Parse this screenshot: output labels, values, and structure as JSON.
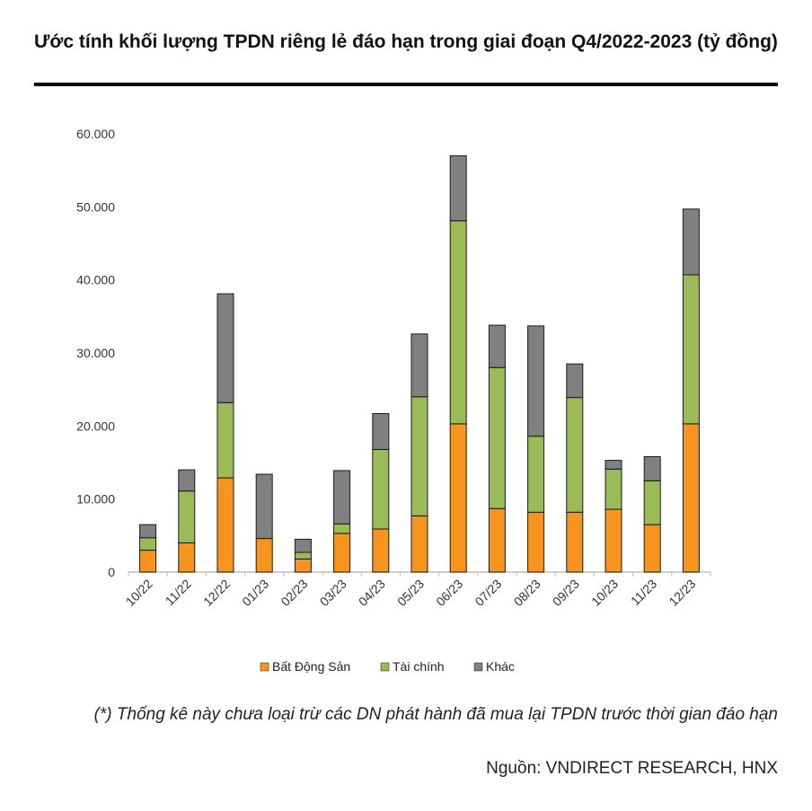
{
  "title": "Ước tính khối lượng TPDN riêng lẻ đáo hạn trong giai đoạn Q4/2022-2023 (tỷ đồng)",
  "note": "(*) Thống kê này chưa loại trừ các DN phát hành đã mua lại TPDN trước thời gian đáo hạn",
  "source": "Nguồn: VNDIRECT RESEARCH, HNX",
  "colors": {
    "bds": "#F7941D",
    "taichinh": "#9BBB59",
    "khac": "#808080",
    "axis": "#bfbfbf"
  },
  "chart_data": {
    "type": "bar",
    "stacked": true,
    "title": "Ước tính khối lượng TPDN riêng lẻ đáo hạn trong giai đoạn Q4/2022-2023 (tỷ đồng)",
    "xlabel": "",
    "ylabel": "",
    "ylim": [
      0,
      60000
    ],
    "yticks": [
      0,
      10000,
      20000,
      30000,
      40000,
      50000,
      60000
    ],
    "ytick_labels": [
      "0",
      "10.000",
      "20.000",
      "30.000",
      "40.000",
      "50.000",
      "60.000"
    ],
    "categories": [
      "10/22",
      "11/22",
      "12/22",
      "01/23",
      "02/23",
      "03/23",
      "04/23",
      "05/23",
      "06/23",
      "07/23",
      "08/23",
      "09/23",
      "10/23",
      "11/23",
      "12/23"
    ],
    "series": [
      {
        "name": "Bất Động Sản",
        "values": [
          3000,
          4000,
          12900,
          4600,
          1800,
          5300,
          5900,
          7700,
          20300,
          8700,
          8200,
          8200,
          8600,
          6500,
          20300
        ]
      },
      {
        "name": "Tài chính",
        "values": [
          1700,
          7100,
          10300,
          0,
          900,
          1300,
          10900,
          16300,
          27800,
          19300,
          10400,
          15700,
          5500,
          6000,
          20400
        ]
      },
      {
        "name": "Khác",
        "values": [
          1800,
          2900,
          14900,
          8800,
          1800,
          7300,
          4900,
          8600,
          8900,
          5800,
          15100,
          4600,
          1200,
          3300,
          9000
        ]
      }
    ],
    "legend_position": "bottom"
  }
}
